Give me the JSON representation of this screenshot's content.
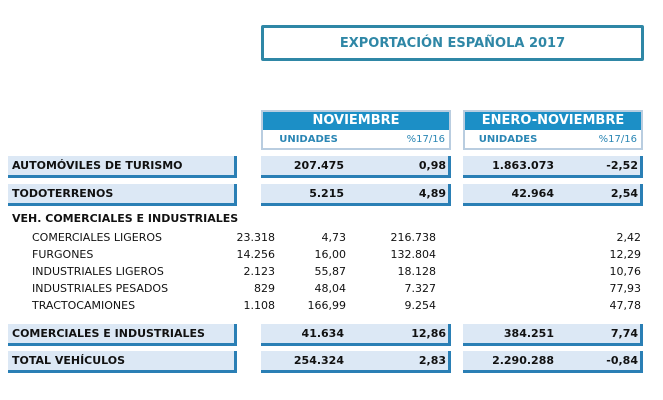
{
  "title": "EXPORTACIÓN ESPAÑOLA 2017",
  "periods": [
    {
      "label": "NOVIEMBRE",
      "col_units": "UNIDADES",
      "col_pct": "%17/16"
    },
    {
      "label": "ENERO-NOVIEMBRE",
      "col_units": "UNIDADES",
      "col_pct": "%17/16"
    }
  ],
  "rows": {
    "turismo": {
      "label": "AUTOMÓVILES DE TURISMO",
      "nov_units": "207.475",
      "nov_pct": "0,98",
      "ytd_units": "1.863.073",
      "ytd_pct": "-2,52"
    },
    "todoterrenos": {
      "label": "TODOTERRENOS",
      "nov_units": "5.215",
      "nov_pct": "4,89",
      "ytd_units": "42.964",
      "ytd_pct": "2,54"
    },
    "section_label": "VEH. COMERCIALES E INDUSTRIALES",
    "sub": [
      {
        "label": "COMERCIALES LIGEROS",
        "nov_units": "23.318",
        "nov_pct": "4,73",
        "ytd_units": "216.738",
        "ytd_pct": "2,42"
      },
      {
        "label": "FURGONES",
        "nov_units": "14.256",
        "nov_pct": "16,00",
        "ytd_units": "132.804",
        "ytd_pct": "12,29"
      },
      {
        "label": "INDUSTRIALES LIGEROS",
        "nov_units": "2.123",
        "nov_pct": "55,87",
        "ytd_units": "18.128",
        "ytd_pct": "10,76"
      },
      {
        "label": "INDUSTRIALES PESADOS",
        "nov_units": "829",
        "nov_pct": "48,04",
        "ytd_units": "7.327",
        "ytd_pct": "77,93"
      },
      {
        "label": "TRACTOCAMIONES",
        "nov_units": "1.108",
        "nov_pct": "166,99",
        "ytd_units": "9.254",
        "ytd_pct": "47,78"
      }
    ],
    "comerciales": {
      "label": "COMERCIALES E INDUSTRIALES",
      "nov_units": "41.634",
      "nov_pct": "12,86",
      "ytd_units": "384.251",
      "ytd_pct": "7,74"
    },
    "total": {
      "label": "TOTAL VEHÍCULOS",
      "nov_units": "254.324",
      "nov_pct": "2,83",
      "ytd_units": "2.290.288",
      "ytd_pct": "-0,84"
    }
  },
  "colors": {
    "accent": "#2f87a6",
    "header": "#1c8fc6",
    "bar_fill": "#dce8f5",
    "bar_border": "#2a7fb5"
  }
}
